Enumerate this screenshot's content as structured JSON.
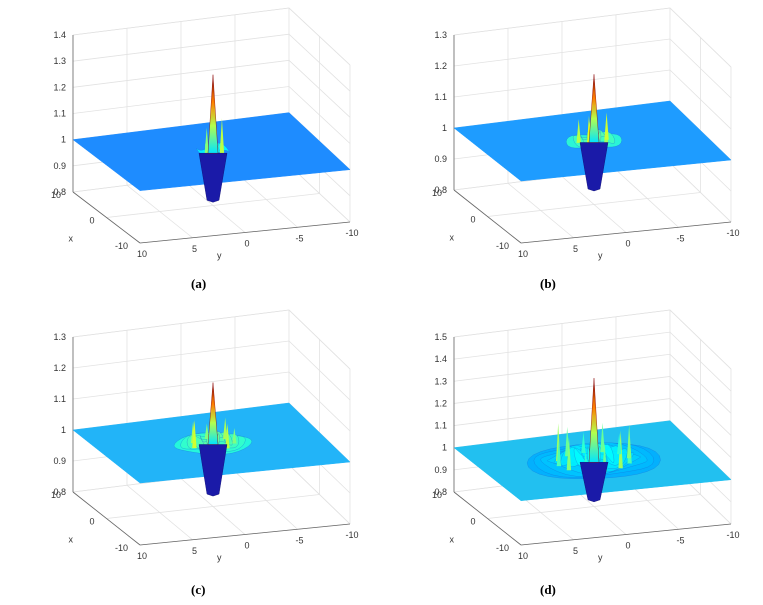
{
  "chart_data": [
    {
      "type": "surface",
      "caption": "(a)",
      "xlabel": "x",
      "ylabel": "y",
      "xlim": [
        -10,
        10
      ],
      "ylim": [
        -10,
        10
      ],
      "zlim": [
        0.8,
        1.4
      ],
      "x_ticks": [
        "10",
        "0",
        "-10"
      ],
      "y_ticks": [
        "10",
        "5",
        "0",
        "-5",
        "-10"
      ],
      "z_ticks": [
        "0.8",
        "0.9",
        "1",
        "1.1",
        "1.2",
        "1.3",
        "1.4"
      ],
      "plane_level": 1.0,
      "peak": 1.3,
      "trough": 0.82,
      "ripple_extent": 1.5,
      "plane_color": "#1e8cff",
      "grid": true
    },
    {
      "type": "surface",
      "caption": "(b)",
      "xlabel": "x",
      "ylabel": "y",
      "xlim": [
        -10,
        10
      ],
      "ylim": [
        -10,
        10
      ],
      "zlim": [
        0.8,
        1.3
      ],
      "x_ticks": [
        "10",
        "0",
        "-10"
      ],
      "y_ticks": [
        "10",
        "5",
        "0",
        "-5",
        "-10"
      ],
      "z_ticks": [
        "0.8",
        "0.9",
        "1",
        "1.1",
        "1.2",
        "1.3"
      ],
      "plane_level": 1.0,
      "peak": 1.22,
      "trough": 0.85,
      "ripple_extent": 2.5,
      "plane_color": "#1e9cff",
      "grid": true
    },
    {
      "type": "surface",
      "caption": "(c)",
      "xlabel": "x",
      "ylabel": "y",
      "xlim": [
        -10,
        10
      ],
      "ylim": [
        -10,
        10
      ],
      "zlim": [
        0.8,
        1.3
      ],
      "x_ticks": [
        "10",
        "0",
        "-10"
      ],
      "y_ticks": [
        "10",
        "5",
        "0",
        "-5",
        "-10"
      ],
      "z_ticks": [
        "0.8",
        "0.9",
        "1",
        "1.1",
        "1.2",
        "1.3"
      ],
      "plane_level": 1.0,
      "peak": 1.2,
      "trough": 0.84,
      "ripple_extent": 3.5,
      "plane_color": "#22b4f8",
      "grid": true
    },
    {
      "type": "surface",
      "caption": "(d)",
      "xlabel": "x",
      "ylabel": "y",
      "xlim": [
        -10,
        10
      ],
      "ylim": [
        -10,
        10
      ],
      "zlim": [
        0.8,
        1.5
      ],
      "x_ticks": [
        "10",
        "0",
        "-10"
      ],
      "y_ticks": [
        "10",
        "5",
        "0",
        "-5",
        "-10"
      ],
      "z_ticks": [
        "0.8",
        "0.9",
        "1",
        "1.1",
        "1.2",
        "1.3",
        "1.4",
        "1.5"
      ],
      "plane_level": 1.0,
      "peak": 1.38,
      "trough": 0.83,
      "ripple_extent": 6,
      "plane_color": "#22c0f0",
      "grid": true
    }
  ]
}
